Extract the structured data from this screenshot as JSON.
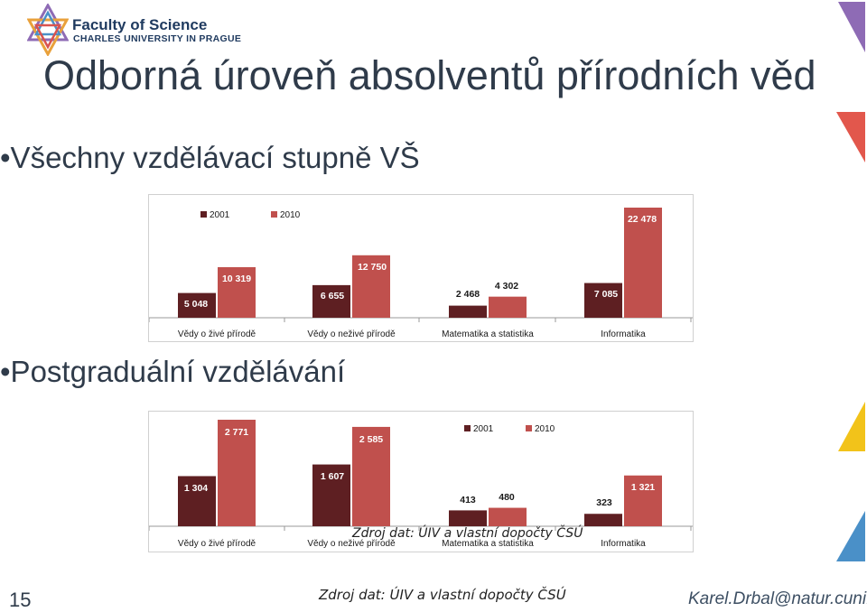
{
  "header": {
    "faculty": "Faculty of Science",
    "university": "CHARLES UNIVERSITY IN PRAGUE"
  },
  "slide": {
    "title": "Odborná úroveň absolventů přírodních věd",
    "bullet1": "•Všechny vzdělávací stupně VŠ",
    "bullet2": "•Postgraduální vzdělávání",
    "source_overlay": "Zdroj dat: ÚIV a vlastní dopočty ČSÚ",
    "slide_number": "15",
    "source_footer": "Zdroj dat: ÚIV a vlastní dopočty ČSÚ",
    "email": "Karel.Drbal@natur.cuni.cz"
  },
  "colors": {
    "series_2001": "#5e1f22",
    "series_2010": "#c0504d",
    "text_dark": "#2f3b4a"
  },
  "chart_data": [
    {
      "type": "bar",
      "categories": [
        "Vědy o živé přírodě",
        "Vědy o neživé přírodě",
        "Matematika a statistika",
        "Informatika"
      ],
      "series": [
        {
          "name": "2001",
          "values": [
            5048,
            6655,
            2468,
            7085
          ],
          "labels": [
            "5 048",
            "6 655",
            "2 468",
            "7 085"
          ]
        },
        {
          "name": "2010",
          "values": [
            10319,
            12750,
            4302,
            22478
          ],
          "labels": [
            "10 319",
            "12 750",
            "4 302",
            "22 478"
          ]
        }
      ],
      "legend": "top-left",
      "grid": false
    },
    {
      "type": "bar",
      "categories": [
        "Vědy o živé přírodě",
        "Vědy o neživé přírodě",
        "Matematika a statistika",
        "Informatika"
      ],
      "series": [
        {
          "name": "2001",
          "values": [
            1304,
            1607,
            413,
            323
          ],
          "labels": [
            "1 304",
            "1 607",
            "413",
            "323"
          ]
        },
        {
          "name": "2010",
          "values": [
            2771,
            2585,
            480,
            1321
          ],
          "labels": [
            "2 771",
            "2 585",
            "480",
            "1 321"
          ]
        }
      ],
      "legend": "top-right",
      "grid": false
    }
  ]
}
